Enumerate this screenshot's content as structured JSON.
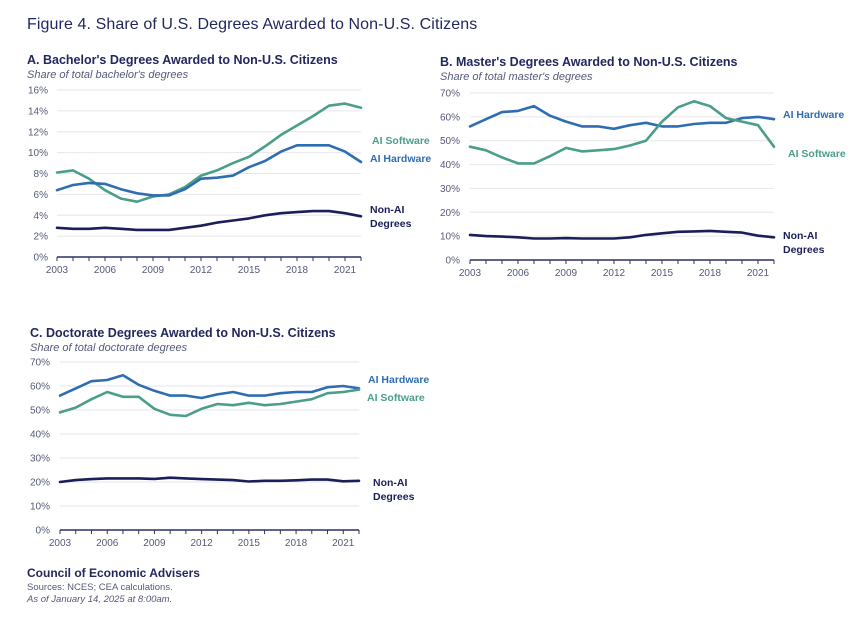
{
  "figure_title": "Figure 4. Share of U.S. Degrees Awarded to Non-U.S. Citizens",
  "colors": {
    "ai_software": "#4a9e8a",
    "ai_hardware": "#2f6db3",
    "non_ai": "#1a1e5a",
    "grid": "#e6e6ec",
    "axis": "#2c3066"
  },
  "chart_data": [
    {
      "type": "line",
      "id": "A",
      "title": "A. Bachelor's Degrees Awarded to Non-U.S. Citizens",
      "subtitle": "Share of total bachelor's degrees",
      "x": [
        2003,
        2004,
        2005,
        2006,
        2007,
        2008,
        2009,
        2010,
        2011,
        2012,
        2013,
        2014,
        2015,
        2016,
        2017,
        2018,
        2019,
        2020,
        2021,
        2022
      ],
      "x_ticks": [
        "2003",
        "2006",
        "2009",
        "2012",
        "2015",
        "2018",
        "2021"
      ],
      "y_ticks": [
        "0%",
        "2%",
        "4%",
        "6%",
        "8%",
        "10%",
        "12%",
        "14%",
        "16%"
      ],
      "ylim": [
        0,
        16
      ],
      "xlabel": "",
      "ylabel": "",
      "grid": true,
      "series": [
        {
          "name": "AI Software",
          "label": "AI Software",
          "color_key": "ai_software",
          "values": [
            8.1,
            8.3,
            7.5,
            6.4,
            5.6,
            5.3,
            5.8,
            6.0,
            6.7,
            7.8,
            8.3,
            9.0,
            9.6,
            10.6,
            11.7,
            12.6,
            13.5,
            14.5,
            14.7,
            14.3
          ]
        },
        {
          "name": "AI Hardware",
          "label": "AI Hardware",
          "color_key": "ai_hardware",
          "values": [
            6.4,
            6.9,
            7.1,
            7.0,
            6.5,
            6.1,
            5.9,
            5.9,
            6.5,
            7.5,
            7.6,
            7.8,
            8.6,
            9.2,
            10.1,
            10.7,
            10.7,
            10.7,
            10.1,
            9.1
          ]
        },
        {
          "name": "Non-AI Degrees",
          "label": "Non-AI Degrees",
          "color_key": "non_ai",
          "values": [
            2.8,
            2.7,
            2.7,
            2.8,
            2.7,
            2.6,
            2.6,
            2.6,
            2.8,
            3.0,
            3.3,
            3.5,
            3.7,
            4.0,
            4.2,
            4.3,
            4.4,
            4.4,
            4.2,
            3.9
          ]
        }
      ]
    },
    {
      "type": "line",
      "id": "B",
      "title": "B. Master's Degrees Awarded to Non-U.S. Citizens",
      "subtitle": "Share of total master's degrees",
      "x": [
        2003,
        2004,
        2005,
        2006,
        2007,
        2008,
        2009,
        2010,
        2011,
        2012,
        2013,
        2014,
        2015,
        2016,
        2017,
        2018,
        2019,
        2020,
        2021,
        2022
      ],
      "x_ticks": [
        "2003",
        "2006",
        "2009",
        "2012",
        "2015",
        "2018",
        "2021"
      ],
      "y_ticks": [
        "0%",
        "10%",
        "20%",
        "30%",
        "40%",
        "50%",
        "60%",
        "70%"
      ],
      "ylim": [
        0,
        70
      ],
      "xlabel": "",
      "ylabel": "",
      "grid": true,
      "series": [
        {
          "name": "AI Hardware",
          "label": "AI Hardware",
          "color_key": "ai_hardware",
          "values": [
            56,
            59,
            62,
            62.5,
            64.5,
            60.5,
            58,
            56,
            56,
            55,
            56.5,
            57.5,
            56,
            56,
            57,
            57.5,
            57.5,
            59.5,
            60,
            59
          ]
        },
        {
          "name": "AI Software",
          "label": "AI Software",
          "color_key": "ai_software",
          "values": [
            47.5,
            46,
            43,
            40.5,
            40.5,
            43.5,
            47,
            45.5,
            46,
            46.5,
            48,
            50,
            58,
            64,
            66.5,
            64.5,
            59.5,
            58,
            56.5,
            47.5
          ]
        },
        {
          "name": "Non-AI Degrees",
          "label": "Non-AI Degrees",
          "color_key": "non_ai",
          "values": [
            10.5,
            10,
            9.8,
            9.5,
            9,
            9,
            9.2,
            9,
            9,
            9,
            9.5,
            10.5,
            11.2,
            11.8,
            12,
            12.2,
            11.8,
            11.5,
            10.2,
            9.5
          ]
        }
      ]
    },
    {
      "type": "line",
      "id": "C",
      "title": "C. Doctorate Degrees Awarded to Non-U.S. Citizens",
      "subtitle": "Share of total doctorate degrees",
      "x": [
        2003,
        2004,
        2005,
        2006,
        2007,
        2008,
        2009,
        2010,
        2011,
        2012,
        2013,
        2014,
        2015,
        2016,
        2017,
        2018,
        2019,
        2020,
        2021,
        2022
      ],
      "x_ticks": [
        "2003",
        "2006",
        "2009",
        "2012",
        "2015",
        "2018",
        "2021"
      ],
      "y_ticks": [
        "0%",
        "10%",
        "20%",
        "30%",
        "40%",
        "50%",
        "60%",
        "70%"
      ],
      "ylim": [
        0,
        70
      ],
      "xlabel": "",
      "ylabel": "",
      "grid": true,
      "series": [
        {
          "name": "AI Hardware",
          "label": "AI Hardware",
          "color_key": "ai_hardware",
          "values": [
            56,
            59,
            62,
            62.5,
            64.5,
            60.5,
            58,
            56,
            56,
            55,
            56.5,
            57.5,
            56,
            56,
            57,
            57.5,
            57.5,
            59.5,
            60,
            59
          ]
        },
        {
          "name": "AI Software",
          "label": "AI Software",
          "color_key": "ai_software",
          "values": [
            49,
            51,
            54.5,
            57.5,
            55.5,
            55.5,
            50.5,
            48,
            47.5,
            50.5,
            52.5,
            52,
            53,
            52,
            52.5,
            53.5,
            54.5,
            57,
            57.5,
            58.5
          ]
        },
        {
          "name": "Non-AI Degrees",
          "label": "Non-AI Degrees",
          "color_key": "non_ai",
          "values": [
            20,
            20.8,
            21.2,
            21.5,
            21.5,
            21.5,
            21.3,
            21.8,
            21.5,
            21.2,
            21,
            20.8,
            20.2,
            20.5,
            20.5,
            20.7,
            21,
            21,
            20.3,
            20.5
          ]
        }
      ]
    }
  ],
  "footer": {
    "organization": "Council of Economic Advisers",
    "sources": "Sources: NCES; CEA calculations.",
    "as_of": "As of January 14, 2025 at 8:00am."
  }
}
